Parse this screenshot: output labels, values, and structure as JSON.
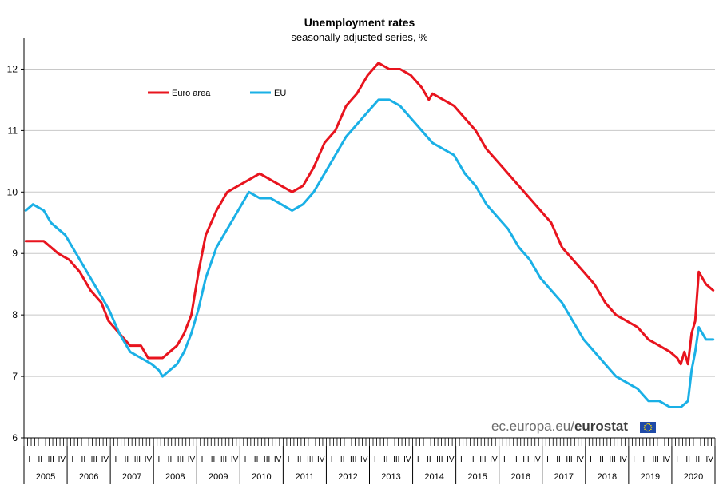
{
  "chart_data": {
    "type": "line",
    "title": "Unemployment rates",
    "subtitle": "seasonally adjusted series, %",
    "xlabel": "",
    "ylabel": "",
    "ylim": [
      6,
      12.5
    ],
    "yticks": [
      "6",
      "7",
      "8",
      "9",
      "10",
      "11",
      "12"
    ],
    "grid": true,
    "legend": "top-left",
    "quarter_labels": [
      "I",
      "II",
      "III",
      "IV"
    ],
    "years": [
      "2005",
      "2006",
      "2007",
      "2008",
      "2009",
      "2010",
      "2011",
      "2012",
      "2013",
      "2014",
      "2015",
      "2016",
      "2017",
      "2018",
      "2019",
      "2020"
    ],
    "x_start": "2005-01",
    "x_end": "2020-12",
    "series": [
      {
        "name": "Euro area",
        "color": "#e8141e",
        "points": [
          [
            "2005-01",
            9.2
          ],
          [
            "2005-06",
            9.2
          ],
          [
            "2005-10",
            9.0
          ],
          [
            "2006-01",
            8.9
          ],
          [
            "2006-04",
            8.7
          ],
          [
            "2006-07",
            8.4
          ],
          [
            "2006-10",
            8.2
          ],
          [
            "2006-12",
            7.9
          ],
          [
            "2007-03",
            7.7
          ],
          [
            "2007-06",
            7.5
          ],
          [
            "2007-09",
            7.5
          ],
          [
            "2007-11",
            7.3
          ],
          [
            "2008-02",
            7.3
          ],
          [
            "2008-03",
            7.3
          ],
          [
            "2008-05",
            7.4
          ],
          [
            "2008-07",
            7.5
          ],
          [
            "2008-09",
            7.7
          ],
          [
            "2008-11",
            8.0
          ],
          [
            "2009-01",
            8.7
          ],
          [
            "2009-03",
            9.3
          ],
          [
            "2009-06",
            9.7
          ],
          [
            "2009-09",
            10.0
          ],
          [
            "2009-12",
            10.1
          ],
          [
            "2010-03",
            10.2
          ],
          [
            "2010-06",
            10.3
          ],
          [
            "2010-09",
            10.2
          ],
          [
            "2010-12",
            10.1
          ],
          [
            "2011-03",
            10.0
          ],
          [
            "2011-06",
            10.1
          ],
          [
            "2011-09",
            10.4
          ],
          [
            "2011-12",
            10.8
          ],
          [
            "2012-03",
            11.0
          ],
          [
            "2012-06",
            11.4
          ],
          [
            "2012-09",
            11.6
          ],
          [
            "2012-12",
            11.9
          ],
          [
            "2013-03",
            12.1
          ],
          [
            "2013-06",
            12.0
          ],
          [
            "2013-09",
            12.0
          ],
          [
            "2013-12",
            11.9
          ],
          [
            "2014-03",
            11.7
          ],
          [
            "2014-05",
            11.5
          ],
          [
            "2014-06",
            11.6
          ],
          [
            "2014-09",
            11.5
          ],
          [
            "2014-12",
            11.4
          ],
          [
            "2015-03",
            11.2
          ],
          [
            "2015-06",
            11.0
          ],
          [
            "2015-09",
            10.7
          ],
          [
            "2015-12",
            10.5
          ],
          [
            "2016-03",
            10.3
          ],
          [
            "2016-06",
            10.1
          ],
          [
            "2016-09",
            9.9
          ],
          [
            "2016-12",
            9.7
          ],
          [
            "2017-03",
            9.5
          ],
          [
            "2017-06",
            9.1
          ],
          [
            "2017-09",
            8.9
          ],
          [
            "2017-12",
            8.7
          ],
          [
            "2018-03",
            8.5
          ],
          [
            "2018-06",
            8.2
          ],
          [
            "2018-09",
            8.0
          ],
          [
            "2018-12",
            7.9
          ],
          [
            "2019-03",
            7.8
          ],
          [
            "2019-06",
            7.6
          ],
          [
            "2019-09",
            7.5
          ],
          [
            "2019-12",
            7.4
          ],
          [
            "2020-02",
            7.3
          ],
          [
            "2020-03",
            7.2
          ],
          [
            "2020-04",
            7.4
          ],
          [
            "2020-05",
            7.2
          ],
          [
            "2020-06",
            7.7
          ],
          [
            "2020-07",
            7.9
          ],
          [
            "2020-08",
            8.7
          ],
          [
            "2020-10",
            8.5
          ],
          [
            "2020-12",
            8.4
          ]
        ]
      },
      {
        "name": "EU",
        "color": "#1ab0e6",
        "points": [
          [
            "2005-01",
            9.7
          ],
          [
            "2005-03",
            9.8
          ],
          [
            "2005-06",
            9.7
          ],
          [
            "2005-08",
            9.5
          ],
          [
            "2005-12",
            9.3
          ],
          [
            "2006-03",
            9.0
          ],
          [
            "2006-06",
            8.7
          ],
          [
            "2006-09",
            8.4
          ],
          [
            "2006-12",
            8.1
          ],
          [
            "2007-03",
            7.7
          ],
          [
            "2007-06",
            7.4
          ],
          [
            "2007-09",
            7.3
          ],
          [
            "2007-12",
            7.2
          ],
          [
            "2008-02",
            7.1
          ],
          [
            "2008-03",
            7.0
          ],
          [
            "2008-05",
            7.1
          ],
          [
            "2008-07",
            7.2
          ],
          [
            "2008-09",
            7.4
          ],
          [
            "2008-11",
            7.7
          ],
          [
            "2009-01",
            8.1
          ],
          [
            "2009-03",
            8.6
          ],
          [
            "2009-06",
            9.1
          ],
          [
            "2009-09",
            9.4
          ],
          [
            "2009-12",
            9.7
          ],
          [
            "2010-03",
            10.0
          ],
          [
            "2010-06",
            9.9
          ],
          [
            "2010-09",
            9.9
          ],
          [
            "2010-12",
            9.8
          ],
          [
            "2011-03",
            9.7
          ],
          [
            "2011-06",
            9.8
          ],
          [
            "2011-09",
            10.0
          ],
          [
            "2011-12",
            10.3
          ],
          [
            "2012-03",
            10.6
          ],
          [
            "2012-06",
            10.9
          ],
          [
            "2012-09",
            11.1
          ],
          [
            "2012-12",
            11.3
          ],
          [
            "2013-03",
            11.5
          ],
          [
            "2013-06",
            11.5
          ],
          [
            "2013-09",
            11.4
          ],
          [
            "2013-12",
            11.2
          ],
          [
            "2014-03",
            11.0
          ],
          [
            "2014-06",
            10.8
          ],
          [
            "2014-09",
            10.7
          ],
          [
            "2014-12",
            10.6
          ],
          [
            "2015-03",
            10.3
          ],
          [
            "2015-06",
            10.1
          ],
          [
            "2015-09",
            9.8
          ],
          [
            "2015-12",
            9.6
          ],
          [
            "2016-03",
            9.4
          ],
          [
            "2016-06",
            9.1
          ],
          [
            "2016-09",
            8.9
          ],
          [
            "2016-12",
            8.6
          ],
          [
            "2017-03",
            8.4
          ],
          [
            "2017-06",
            8.2
          ],
          [
            "2017-09",
            7.9
          ],
          [
            "2017-12",
            7.6
          ],
          [
            "2018-03",
            7.4
          ],
          [
            "2018-06",
            7.2
          ],
          [
            "2018-09",
            7.0
          ],
          [
            "2018-12",
            6.9
          ],
          [
            "2019-03",
            6.8
          ],
          [
            "2019-06",
            6.6
          ],
          [
            "2019-09",
            6.6
          ],
          [
            "2019-12",
            6.5
          ],
          [
            "2020-03",
            6.5
          ],
          [
            "2020-05",
            6.6
          ],
          [
            "2020-06",
            7.1
          ],
          [
            "2020-07",
            7.4
          ],
          [
            "2020-08",
            7.8
          ],
          [
            "2020-10",
            7.6
          ],
          [
            "2020-12",
            7.6
          ]
        ]
      }
    ]
  },
  "watermark": {
    "prefix": "ec.europa.eu/",
    "brand": "eurostat"
  },
  "colors": {
    "grid": "#c8c8c8",
    "axis": "#000000",
    "flag_blue": "#1f4aa8",
    "flag_star": "#ffe000"
  }
}
